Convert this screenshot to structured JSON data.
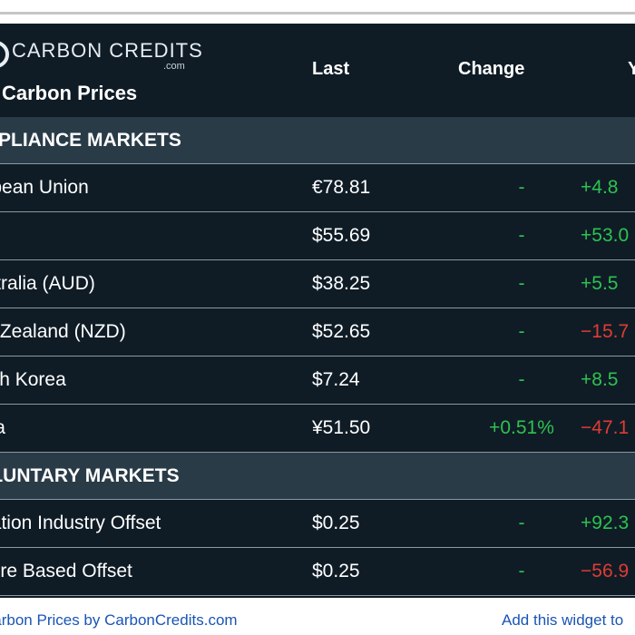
{
  "widget": {
    "brand": "CARBON CREDITS",
    "brand_suffix": ".com",
    "title": "Carbon Prices"
  },
  "columns": {
    "last": "Last",
    "change": "Change",
    "ytd": "YTD"
  },
  "sections": [
    {
      "label": "COMPLIANCE MARKETS",
      "rows": [
        {
          "name": "European Union",
          "last": "€78.81",
          "change": "-",
          "change_tone": "pos",
          "ytd": "+4.8",
          "ytd_tone": "pos"
        },
        {
          "name": "",
          "last": "$55.69",
          "change": "-",
          "change_tone": "pos",
          "ytd": "+53.0",
          "ytd_tone": "pos"
        },
        {
          "name": "Australia (AUD)",
          "last": "$38.25",
          "change": "-",
          "change_tone": "pos",
          "ytd": "+5.5",
          "ytd_tone": "pos"
        },
        {
          "name": "New Zealand (NZD)",
          "last": "$52.65",
          "change": "-",
          "change_tone": "pos",
          "ytd": "−15.7",
          "ytd_tone": "neg"
        },
        {
          "name": "South Korea",
          "last": "$7.24",
          "change": "-",
          "change_tone": "pos",
          "ytd": "+8.5",
          "ytd_tone": "pos"
        },
        {
          "name": "China",
          "last": "¥51.50",
          "change": "+0.51%",
          "change_tone": "pos",
          "ytd": "−47.1",
          "ytd_tone": "neg"
        }
      ]
    },
    {
      "label": "VOLUNTARY MARKETS",
      "rows": [
        {
          "name": "Aviation Industry Offset",
          "last": "$0.25",
          "change": "-",
          "change_tone": "pos",
          "ytd": "+92.3",
          "ytd_tone": "pos"
        },
        {
          "name": "Nature Based Offset",
          "last": "$0.25",
          "change": "-",
          "change_tone": "pos",
          "ytd": "−56.9",
          "ytd_tone": "neg"
        }
      ]
    }
  ],
  "footer": {
    "credit": "Carbon Prices by CarbonCredits.com",
    "add_widget": "Add this widget to"
  },
  "colors": {
    "background": "#0f1c26",
    "section": "#2a3b48",
    "positive": "#2ec24f",
    "negative": "#e03b34",
    "link": "#1a55b4"
  }
}
